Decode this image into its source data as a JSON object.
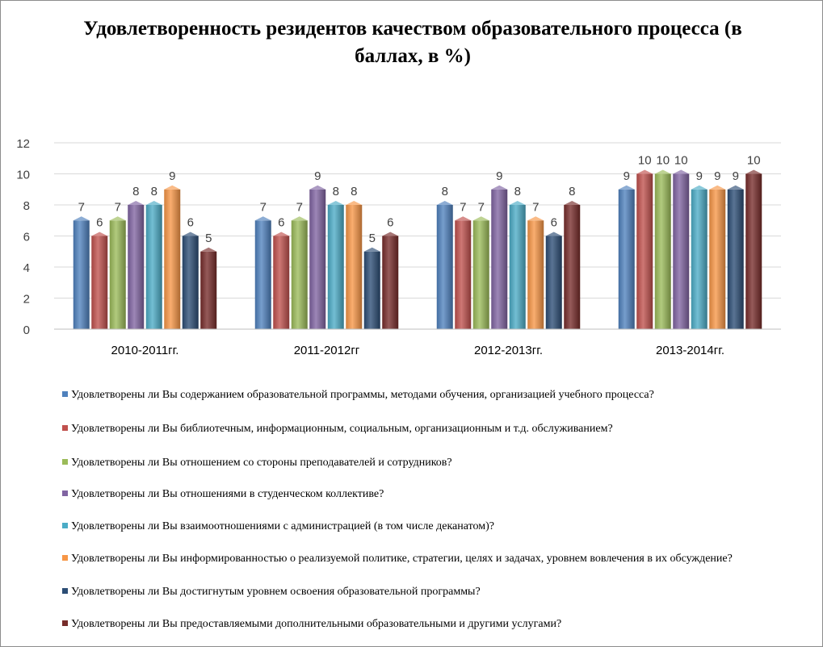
{
  "chart_data": {
    "type": "bar",
    "title": "Удовлетворенность резидентов качеством образовательного процесса (в баллах, в %)",
    "categories": [
      "2010-2011гг.",
      "2011-2012гг",
      "2012-2013гг.",
      "2013-2014гг."
    ],
    "ylim": [
      0,
      12
    ],
    "yticks": [
      0,
      2,
      4,
      6,
      8,
      10,
      12
    ],
    "grid": true,
    "legend_position": "bottom",
    "series": [
      {
        "name": "Удовлетворены ли Вы содержанием образовательной программы, методами обучения, организацией учебного процесса?",
        "color": "#4f81bd",
        "values": [
          7,
          7,
          8,
          9
        ]
      },
      {
        "name": "Удовлетворены ли Вы библиотечным, информационным, социальным, организационным и т.д. обслуживанием?",
        "color": "#c0504d",
        "values": [
          6,
          6,
          7,
          10
        ]
      },
      {
        "name": "Удовлетворены ли Вы отношением со стороны преподавателей и сотрудников?",
        "color": "#9bbb59",
        "values": [
          7,
          7,
          7,
          10
        ]
      },
      {
        "name": "Удовлетворены ли Вы отношениями в студенческом коллективе?",
        "color": "#8064a2",
        "values": [
          8,
          9,
          9,
          10
        ]
      },
      {
        "name": "Удовлетворены ли Вы взаимоотношениями с администрацией (в том числе деканатом)?",
        "color": "#4bacc6",
        "values": [
          8,
          8,
          8,
          9
        ]
      },
      {
        "name": "Удовлетворены ли Вы информированностью о реализуемой политике, стратегии, целях и задачах, уровнем вовлечения в их обсуждение?",
        "color": "#f79646",
        "values": [
          9,
          8,
          7,
          9
        ]
      },
      {
        "name": "Удовлетворены ли Вы достигнутым уровнем освоения образовательной программы?",
        "color": "#2c4d75",
        "values": [
          6,
          5,
          6,
          9
        ]
      },
      {
        "name": "Удовлетворены ли Вы предоставляемыми дополнительными образовательными и другими услугами?",
        "color": "#772c2a",
        "values": [
          5,
          6,
          8,
          10
        ]
      }
    ]
  }
}
